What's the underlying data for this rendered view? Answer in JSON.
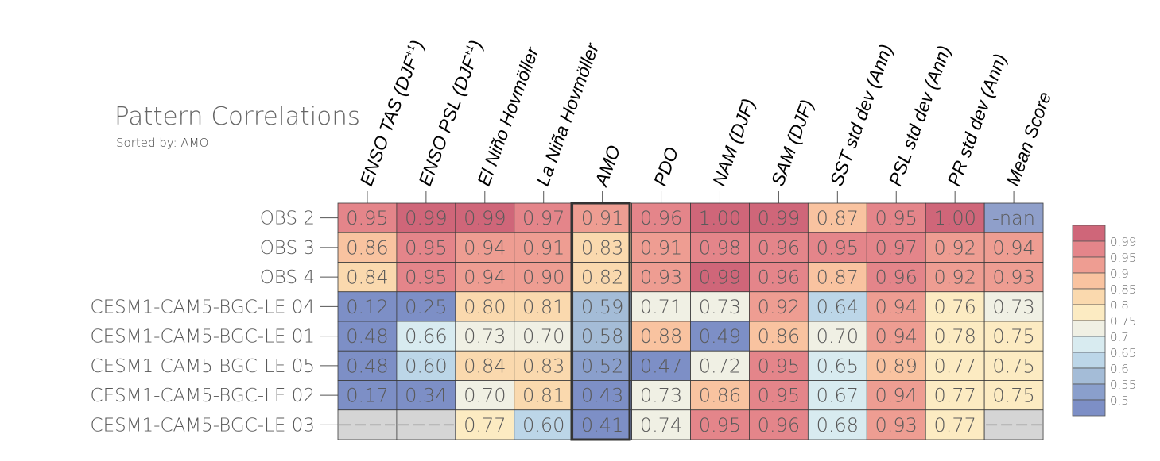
{
  "title": "Pattern Correlations",
  "subtitle": "Sorted by: AMO",
  "chart_data": {
    "type": "heatmap",
    "title": "Pattern Correlations",
    "subtitle": "Sorted by: AMO",
    "sorted_by": "AMO",
    "highlighted_column": "AMO",
    "columns": [
      "ENSO TAS (DJF+1)",
      "ENSO PSL (DJF+1)",
      "El Niño Hovmöller",
      "La Niña Hovmöller",
      "AMO",
      "PDO",
      "NAM (DJF)",
      "SAM (DJF)",
      "SST std dev (Ann)",
      "PSL std dev (Ann)",
      "PR std dev (Ann)",
      "Mean Score"
    ],
    "rows": [
      {
        "name": "OBS 2",
        "values": [
          "0.95",
          "0.99",
          "0.99",
          "0.97",
          "0.91",
          "0.96",
          "1.00",
          "0.99",
          "0.87",
          "0.95",
          "1.00",
          "-nan"
        ]
      },
      {
        "name": "OBS 3",
        "values": [
          "0.86",
          "0.95",
          "0.94",
          "0.91",
          "0.83",
          "0.91",
          "0.98",
          "0.96",
          "0.95",
          "0.97",
          "0.92",
          "0.94"
        ]
      },
      {
        "name": "OBS 4",
        "values": [
          "0.84",
          "0.95",
          "0.94",
          "0.90",
          "0.82",
          "0.93",
          "0.99",
          "0.96",
          "0.87",
          "0.96",
          "0.92",
          "0.93"
        ]
      },
      {
        "name": "CESM1-CAM5-BGC-LE 04",
        "values": [
          "0.12",
          "0.25",
          "0.80",
          "0.81",
          "0.59",
          "0.71",
          "0.73",
          "0.92",
          "0.64",
          "0.94",
          "0.76",
          "0.73"
        ]
      },
      {
        "name": "CESM1-CAM5-BGC-LE 01",
        "values": [
          "0.48",
          "0.66",
          "0.73",
          "0.70",
          "0.58",
          "0.88",
          "0.49",
          "0.86",
          "0.70",
          "0.94",
          "0.78",
          "0.75"
        ]
      },
      {
        "name": "CESM1-CAM5-BGC-LE 05",
        "values": [
          "0.48",
          "0.60",
          "0.84",
          "0.83",
          "0.52",
          "0.47",
          "0.72",
          "0.95",
          "0.65",
          "0.89",
          "0.77",
          "0.75"
        ]
      },
      {
        "name": "CESM1-CAM5-BGC-LE 02",
        "values": [
          "0.17",
          "0.34",
          "0.70",
          "0.81",
          "0.43",
          "0.73",
          "0.86",
          "0.95",
          "0.67",
          "0.94",
          "0.77",
          "0.75"
        ]
      },
      {
        "name": "CESM1-CAM5-BGC-LE 03",
        "values": [
          "---",
          "---",
          "0.77",
          "0.60",
          "0.41",
          "0.74",
          "0.95",
          "0.96",
          "0.68",
          "0.93",
          "0.77",
          "---"
        ]
      }
    ],
    "missing_marker": "---",
    "colorbar": {
      "levels": [
        "0.99",
        "0.95",
        "0.9",
        "0.85",
        "0.8",
        "0.75",
        "0.7",
        "0.65",
        "0.6",
        "0.55",
        "0.5"
      ],
      "colors": [
        "#cf6679",
        "#e4858a",
        "#ee9d92",
        "#f9c3a0",
        "#fad9ae",
        "#fcebc2",
        "#f0f0e4",
        "#d8ebf0",
        "#bcd6e8",
        "#a4bcd7",
        "#8a9fcc",
        "#7d8fc6"
      ]
    },
    "colors": {
      "nan": "#8f9fca",
      "missing": "#d5d5d5"
    }
  }
}
